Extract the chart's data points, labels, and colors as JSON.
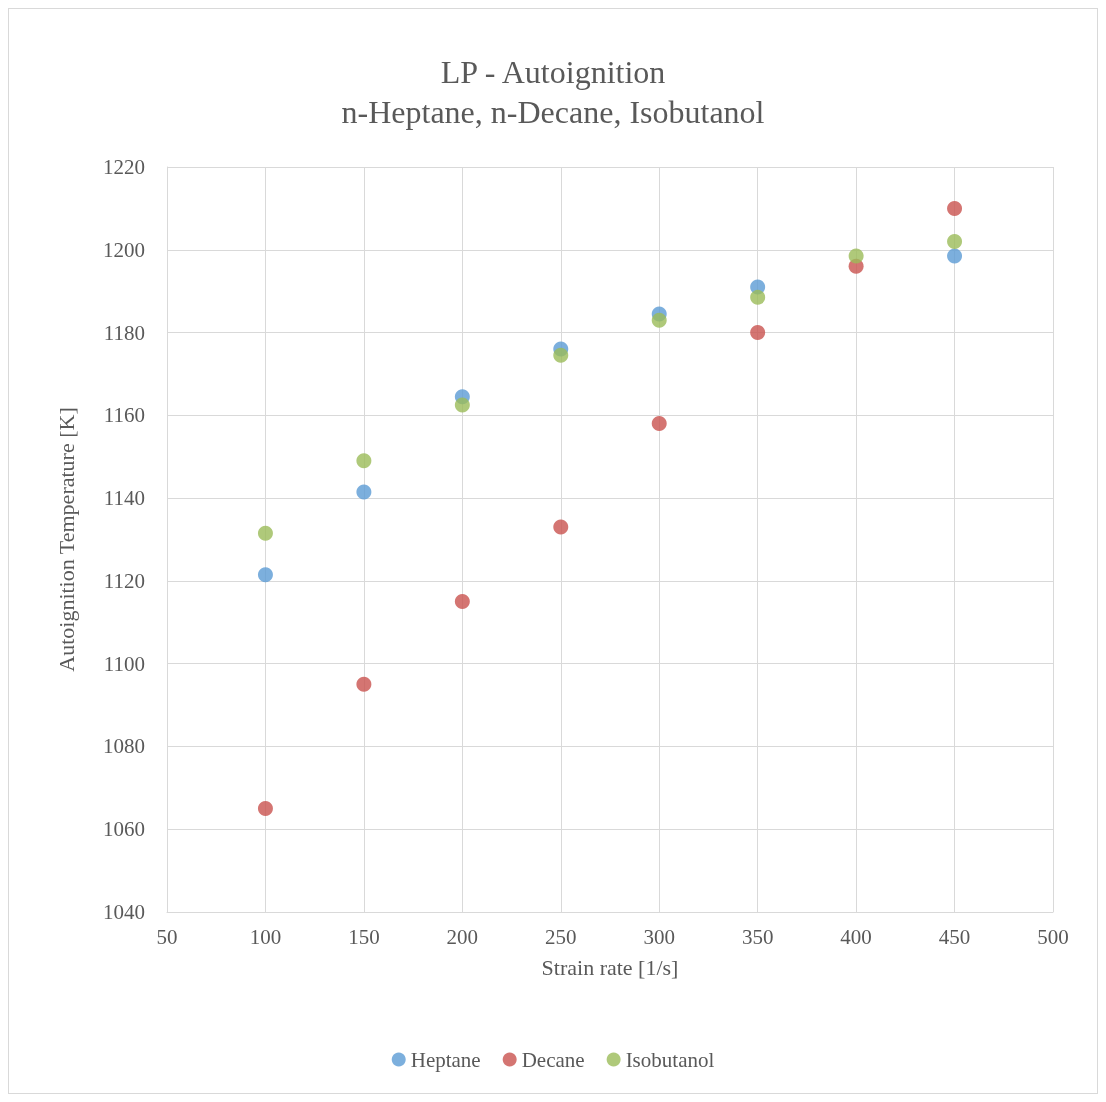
{
  "chart_data": {
    "type": "scatter",
    "title": "LP - Autoignition",
    "subtitle": "n-Heptane, n-Decane, Isobutanol",
    "xlabel": "Strain rate [1/s]",
    "ylabel": "Autoignition Temperature [K]",
    "x": [
      100,
      150,
      200,
      250,
      300,
      350,
      400,
      450
    ],
    "series": [
      {
        "name": "Heptane",
        "color": "#5b9bd5",
        "values": [
          1121.5,
          1141.5,
          1164.5,
          1176,
          1184.5,
          1191,
          null,
          1198.5
        ]
      },
      {
        "name": "Decane",
        "color": "#c9534f",
        "values": [
          1065,
          1095,
          1115,
          1133,
          1158,
          1180,
          1196,
          1210
        ]
      },
      {
        "name": "Isobutanol",
        "color": "#9bbb59",
        "values": [
          1131.5,
          1149,
          1162.5,
          1174.5,
          1183,
          1188.5,
          1198.5,
          1202
        ]
      }
    ],
    "xlim": [
      50,
      500
    ],
    "xticks": [
      50,
      100,
      150,
      200,
      250,
      300,
      350,
      400,
      450,
      500
    ],
    "ylim": [
      1040,
      1220
    ],
    "yticks": [
      1040,
      1060,
      1080,
      1100,
      1120,
      1140,
      1160,
      1180,
      1200,
      1220
    ],
    "grid": true,
    "legend": "bottom",
    "marker": "circle"
  }
}
